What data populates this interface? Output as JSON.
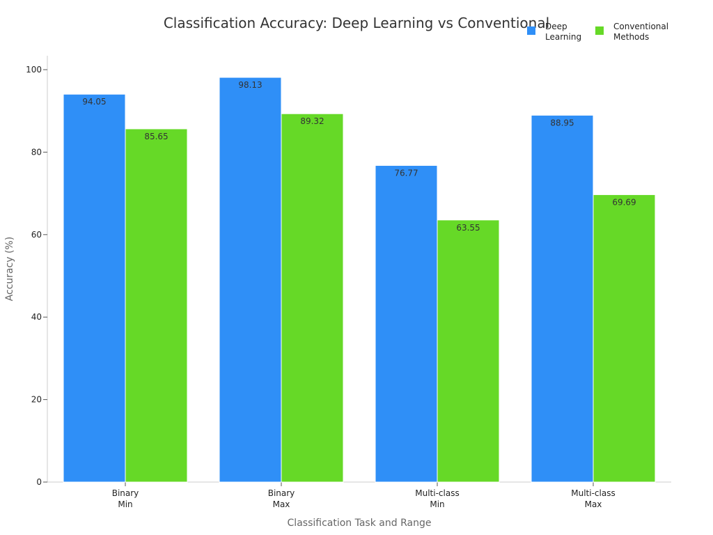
{
  "chart_data": {
    "type": "bar",
    "title": "Classification Accuracy: Deep Learning vs Conventional",
    "xlabel": "Classification Task and Range",
    "ylabel": "Accuracy (%)",
    "categories": [
      [
        "Binary",
        "Min"
      ],
      [
        "Binary",
        "Max"
      ],
      [
        "Multi-class",
        "Min"
      ],
      [
        "Multi-class",
        "Max"
      ]
    ],
    "series": [
      {
        "name": [
          "Deep",
          "Learning"
        ],
        "color": "#2f8ff7",
        "values": [
          94.05,
          98.13,
          76.77,
          88.95
        ]
      },
      {
        "name": [
          "Conventional",
          "Methods"
        ],
        "color": "#66d927",
        "values": [
          85.65,
          89.32,
          63.55,
          69.69
        ]
      }
    ],
    "ylim": [
      0,
      100
    ],
    "yticks": [
      0,
      20,
      40,
      60,
      80,
      100
    ],
    "grid": false,
    "legend_position": "top-right"
  }
}
